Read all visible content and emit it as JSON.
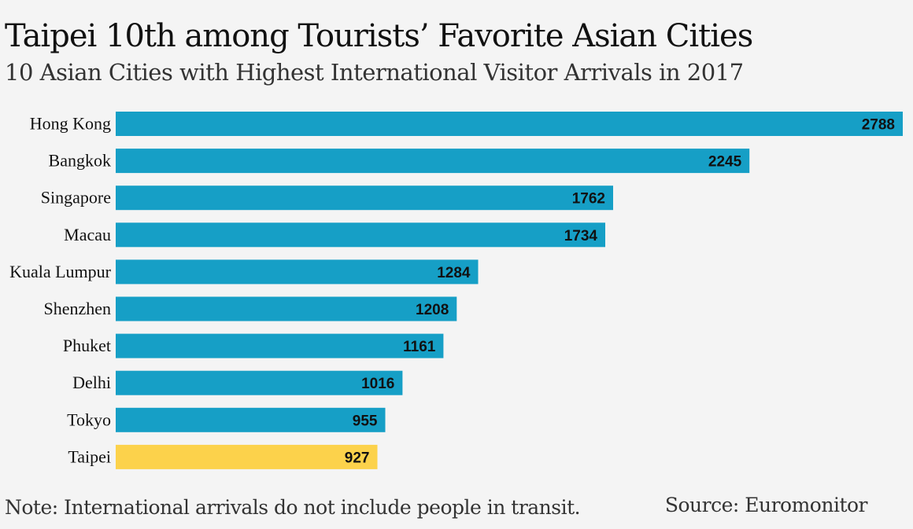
{
  "header": {
    "title": "Taipei 10th among Tourists’ Favorite Asian Cities",
    "subtitle": "10 Asian Cities with Highest International Visitor Arrivals in 2017"
  },
  "footer": {
    "note": "Note: International arrivals do not include people in transit.",
    "source": "Source: Euromonitor"
  },
  "colors": {
    "bar": "#169fc6",
    "highlight": "#fcd24b",
    "background": "#f4f4f4"
  },
  "chart_data": {
    "type": "bar",
    "orientation": "horizontal",
    "title": "Taipei 10th among Tourists’ Favorite Asian Cities",
    "subtitle": "10 Asian Cities with Highest International Visitor Arrivals in 2017",
    "xlabel": "",
    "ylabel": "",
    "categories": [
      "Hong Kong",
      "Bangkok",
      "Singapore",
      "Macau",
      "Kuala Lumpur",
      "Shenzhen",
      "Phuket",
      "Delhi",
      "Tokyo",
      "Taipei"
    ],
    "values": [
      2788,
      2245,
      1762,
      1734,
      1284,
      1208,
      1161,
      1016,
      955,
      927
    ],
    "highlight": "Taipei",
    "xlim": [
      0,
      2788
    ],
    "grid": false,
    "legend": "none",
    "data_labels": "inside-end"
  }
}
